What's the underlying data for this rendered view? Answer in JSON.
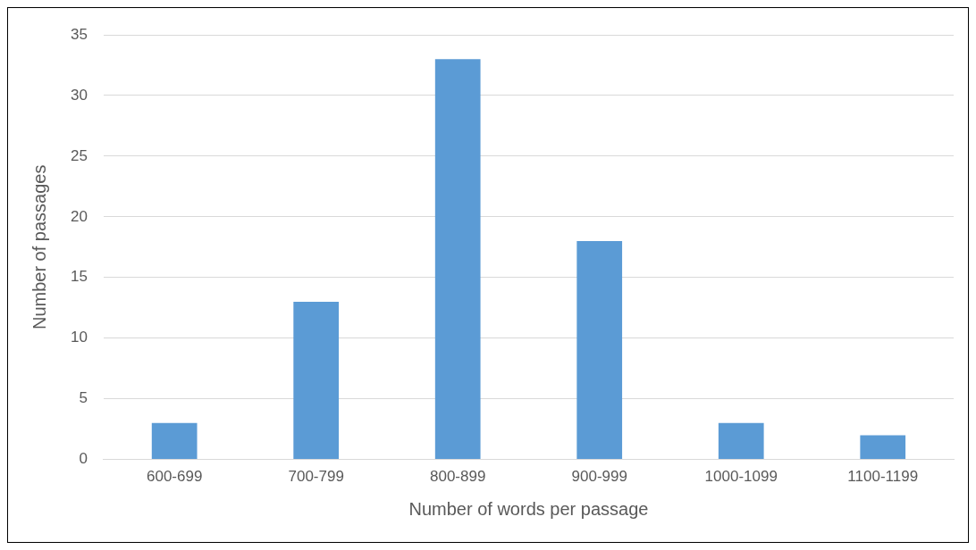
{
  "chart_data": {
    "type": "bar",
    "xlabel": "Number of words per passage",
    "ylabel": "Number of passages",
    "categories": [
      "600-699",
      "700-799",
      "800-899",
      "900-999",
      "1000-1099",
      "1100-1199"
    ],
    "values": [
      3,
      13,
      33,
      18,
      3,
      2
    ],
    "color": "#5b9bd5",
    "ylim": [
      0,
      35
    ],
    "yticks": [
      0,
      5,
      10,
      15,
      20,
      25,
      30,
      35
    ],
    "grid": "y",
    "legend": false
  }
}
